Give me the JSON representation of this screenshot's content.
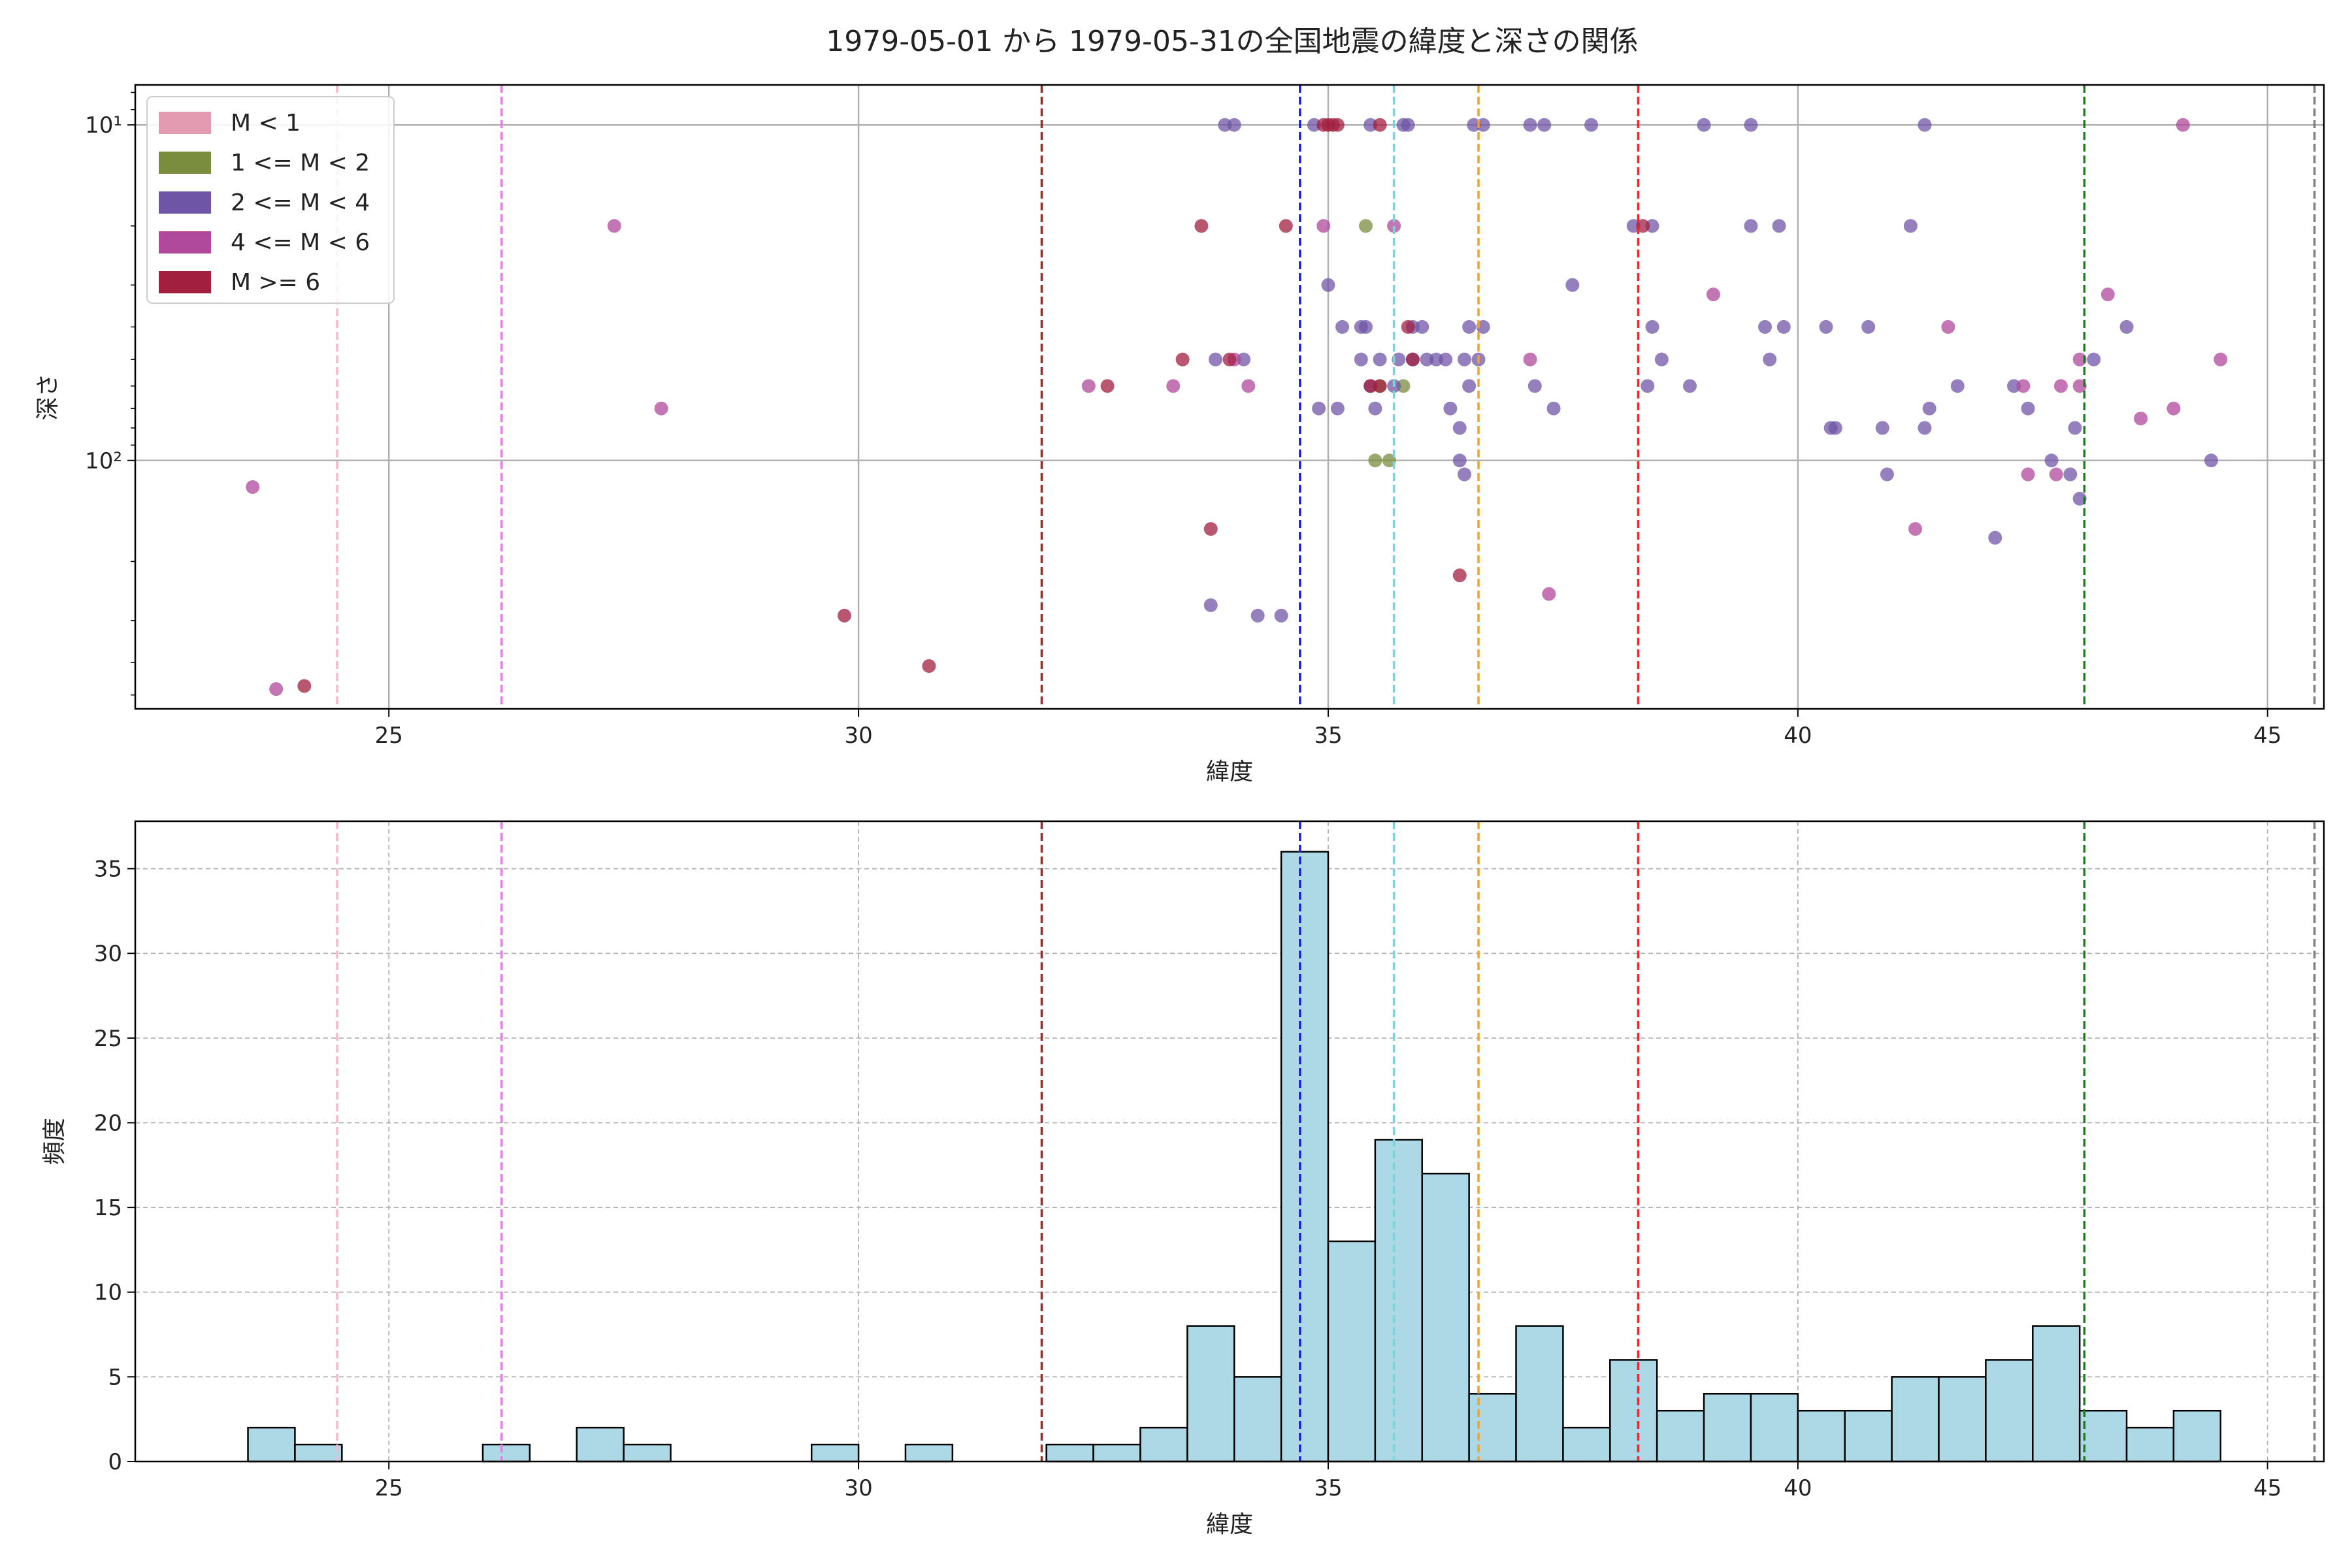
{
  "chart_data": [
    {
      "type": "scatter",
      "title": "1979-05-01 から 1979-05-31の全国地震の緯度と深さの関係",
      "xlabel": "緯度",
      "ylabel": "深さ",
      "xlim": [
        22.3,
        45.6
      ],
      "ylim": [
        550,
        7.6
      ],
      "yscale": "log",
      "y_inverted": true,
      "grid": true,
      "x_ticks": [
        25,
        30,
        35,
        40,
        45
      ],
      "y_ticks": [
        {
          "value": 10,
          "label": "10¹"
        },
        {
          "value": 100,
          "label": "10²"
        }
      ],
      "legend": {
        "placement": "top-left",
        "entries": [
          {
            "label": "M < 1",
            "color": "#e39bb2"
          },
          {
            "label": "1 <= M < 2",
            "color": "#7a8c3e"
          },
          {
            "label": "2 <= M < 4",
            "color": "#6f55a6"
          },
          {
            "label": "4 <= M < 6",
            "color": "#b0489b"
          },
          {
            "label": "M >= 6",
            "color": "#a21f40"
          }
        ]
      },
      "vlines": [
        {
          "x": 24.45,
          "color": "#f7b6cd"
        },
        {
          "x": 26.2,
          "color": "#e67ee6"
        },
        {
          "x": 31.95,
          "color": "#a52a2a"
        },
        {
          "x": 34.7,
          "color": "#1f1fd6"
        },
        {
          "x": 35.7,
          "color": "#7dd3d8"
        },
        {
          "x": 36.6,
          "color": "#f2a22a"
        },
        {
          "x": 38.3,
          "color": "#ee2a2a"
        },
        {
          "x": 43.05,
          "color": "#1b7d1b"
        },
        {
          "x": 45.5,
          "color": "#808080"
        }
      ],
      "series": [
        {
          "name": "1 <= M < 2",
          "points": [
            [
              35.4,
              20
            ],
            [
              35.55,
              60
            ],
            [
              35.5,
              100
            ],
            [
              35.65,
              100
            ],
            [
              35.8,
              60
            ]
          ]
        },
        {
          "name": "2 <= M < 4",
          "points": [
            [
              33.9,
              10
            ],
            [
              34.0,
              10
            ],
            [
              34.85,
              10
            ],
            [
              35.45,
              10
            ],
            [
              35.8,
              10
            ],
            [
              35.85,
              10
            ],
            [
              36.55,
              10
            ],
            [
              36.65,
              10
            ],
            [
              37.15,
              10
            ],
            [
              37.3,
              10
            ],
            [
              37.8,
              10
            ],
            [
              38.25,
              20
            ],
            [
              38.45,
              20
            ],
            [
              39.0,
              10
            ],
            [
              39.5,
              10
            ],
            [
              39.5,
              20
            ],
            [
              39.8,
              20
            ],
            [
              41.35,
              10
            ],
            [
              41.2,
              20
            ],
            [
              35.0,
              30
            ],
            [
              35.15,
              40
            ],
            [
              35.35,
              40
            ],
            [
              35.4,
              40
            ],
            [
              35.35,
              50
            ],
            [
              35.55,
              50
            ],
            [
              35.75,
              50
            ],
            [
              35.9,
              40
            ],
            [
              36.0,
              40
            ],
            [
              35.9,
              50
            ],
            [
              36.05,
              50
            ],
            [
              36.15,
              50
            ],
            [
              36.25,
              50
            ],
            [
              36.5,
              40
            ],
            [
              36.65,
              40
            ],
            [
              36.45,
              50
            ],
            [
              36.6,
              50
            ],
            [
              37.6,
              30
            ],
            [
              38.45,
              40
            ],
            [
              38.55,
              50
            ],
            [
              39.65,
              40
            ],
            [
              39.85,
              40
            ],
            [
              39.7,
              50
            ],
            [
              40.3,
              40
            ],
            [
              40.75,
              40
            ],
            [
              43.5,
              40
            ],
            [
              43.15,
              50
            ],
            [
              33.8,
              50
            ],
            [
              34.1,
              50
            ],
            [
              34.9,
              70
            ],
            [
              35.1,
              70
            ],
            [
              35.5,
              70
            ],
            [
              35.7,
              60
            ],
            [
              36.3,
              70
            ],
            [
              36.4,
              80
            ],
            [
              36.5,
              60
            ],
            [
              37.2,
              60
            ],
            [
              37.4,
              70
            ],
            [
              38.4,
              60
            ],
            [
              38.85,
              60
            ],
            [
              40.35,
              80
            ],
            [
              40.4,
              80
            ],
            [
              40.9,
              80
            ],
            [
              40.95,
              110
            ],
            [
              41.4,
              70
            ],
            [
              41.35,
              80
            ],
            [
              41.7,
              60
            ],
            [
              42.3,
              60
            ],
            [
              42.45,
              70
            ],
            [
              42.7,
              100
            ],
            [
              42.9,
              110
            ],
            [
              42.95,
              80
            ],
            [
              43.0,
              130
            ],
            [
              44.4,
              100
            ],
            [
              42.1,
              170
            ],
            [
              36.4,
              100
            ],
            [
              36.45,
              110
            ],
            [
              33.75,
              270
            ],
            [
              34.25,
              290
            ],
            [
              34.5,
              290
            ],
            [
              35.45,
              60
            ]
          ]
        },
        {
          "name": "4 <= M < 6",
          "points": [
            [
              23.55,
              120
            ],
            [
              23.8,
              480
            ],
            [
              27.4,
              20
            ],
            [
              27.9,
              70
            ],
            [
              32.45,
              60
            ],
            [
              33.35,
              60
            ],
            [
              34.0,
              50
            ],
            [
              34.15,
              60
            ],
            [
              34.95,
              20
            ],
            [
              35.7,
              20
            ],
            [
              37.15,
              50
            ],
            [
              37.35,
              250
            ],
            [
              39.1,
              32
            ],
            [
              41.6,
              40
            ],
            [
              41.25,
              160
            ],
            [
              42.4,
              60
            ],
            [
              42.45,
              110
            ],
            [
              42.75,
              110
            ],
            [
              42.8,
              60
            ],
            [
              43.0,
              50
            ],
            [
              43.0,
              60
            ],
            [
              43.3,
              32
            ],
            [
              43.65,
              75
            ],
            [
              44.0,
              70
            ],
            [
              44.1,
              10
            ],
            [
              44.5,
              50
            ]
          ]
        },
        {
          "name": "M >= 6",
          "points": [
            [
              24.1,
              470
            ],
            [
              29.85,
              290
            ],
            [
              30.75,
              410
            ],
            [
              32.65,
              60
            ],
            [
              33.65,
              20
            ],
            [
              33.45,
              50
            ],
            [
              33.95,
              50
            ],
            [
              34.55,
              20
            ],
            [
              34.95,
              10
            ],
            [
              35.0,
              10
            ],
            [
              35.05,
              10
            ],
            [
              35.1,
              10
            ],
            [
              35.55,
              10
            ],
            [
              35.45,
              60
            ],
            [
              35.55,
              60
            ],
            [
              35.85,
              40
            ],
            [
              35.9,
              50
            ],
            [
              36.4,
              220
            ],
            [
              33.75,
              160
            ],
            [
              38.35,
              20
            ]
          ]
        }
      ]
    },
    {
      "type": "bar",
      "xlabel": "緯度",
      "ylabel": "頻度",
      "xlim": [
        22.3,
        45.6
      ],
      "ylim": [
        0,
        37.8
      ],
      "grid": true,
      "x_ticks": [
        25,
        30,
        35,
        40,
        45
      ],
      "y_ticks": [
        0,
        5,
        10,
        15,
        20,
        25,
        30,
        35
      ],
      "bin_start": 23.5,
      "bin_width": 0.5,
      "counts": [
        2,
        1,
        0,
        0,
        0,
        1,
        0,
        2,
        1,
        0,
        0,
        0,
        1,
        0,
        1,
        0,
        0,
        1,
        1,
        2,
        8,
        5,
        36,
        13,
        19,
        17,
        4,
        8,
        2,
        6,
        3,
        4,
        4,
        3,
        3,
        5,
        5,
        6,
        8,
        3,
        2,
        3
      ],
      "vlines": [
        {
          "x": 24.45,
          "color": "#f7b6cd"
        },
        {
          "x": 26.2,
          "color": "#e67ee6"
        },
        {
          "x": 31.95,
          "color": "#a52a2a"
        },
        {
          "x": 34.7,
          "color": "#1f1fd6"
        },
        {
          "x": 35.7,
          "color": "#7dd3d8"
        },
        {
          "x": 36.6,
          "color": "#f2a22a"
        },
        {
          "x": 38.3,
          "color": "#ee2a2a"
        },
        {
          "x": 43.05,
          "color": "#1b7d1b"
        },
        {
          "x": 45.5,
          "color": "#808080"
        }
      ]
    }
  ]
}
